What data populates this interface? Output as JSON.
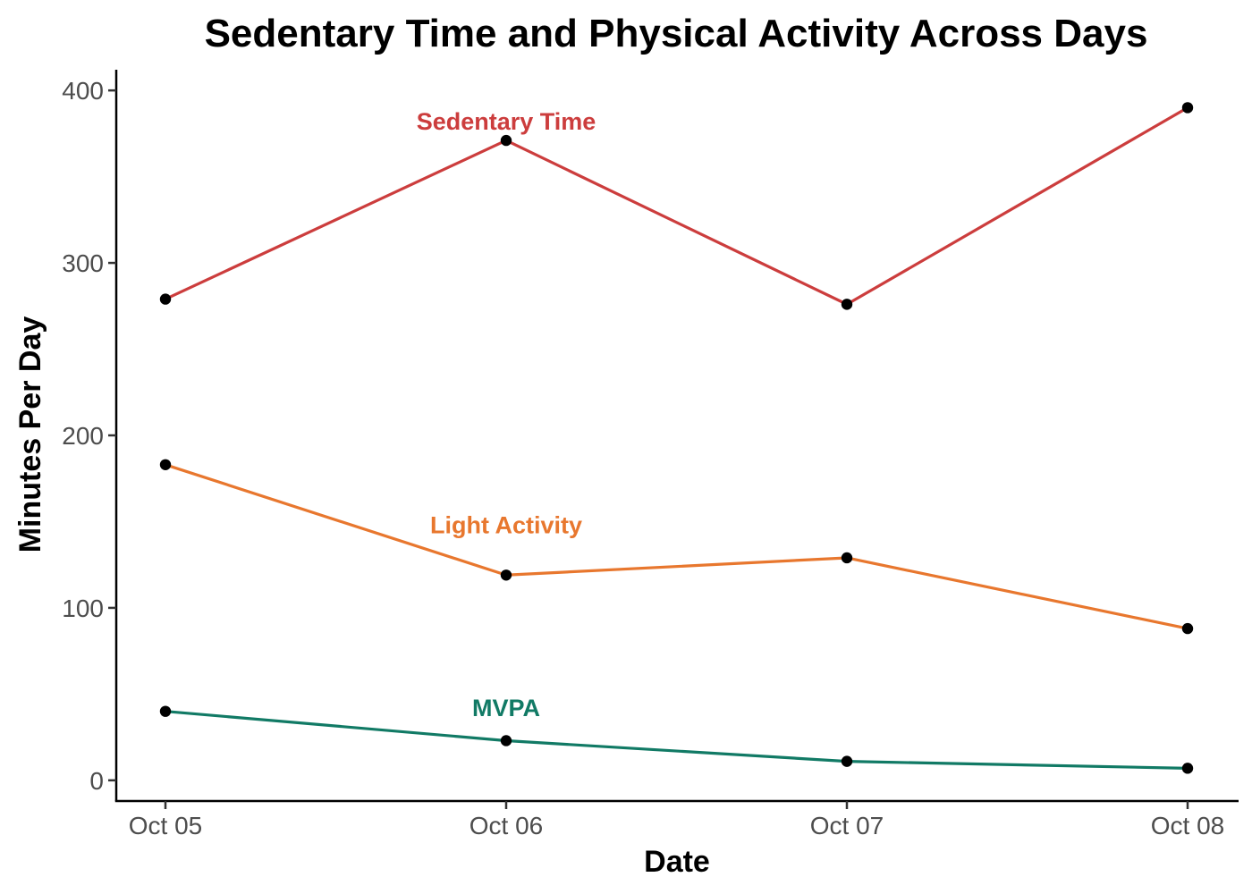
{
  "chart_data": {
    "type": "line",
    "title": "Sedentary Time and Physical Activity Across Days",
    "xlabel": "Date",
    "ylabel": "Minutes Per Day",
    "categories": [
      "Oct 05",
      "Oct 06",
      "Oct 07",
      "Oct 08"
    ],
    "ylim": [
      -12,
      412
    ],
    "yticks": [
      0,
      100,
      200,
      300,
      400
    ],
    "grid": false,
    "legend": "none (direct labels on lines)",
    "marker_color": "#000000",
    "series": [
      {
        "name": "Sedentary Time",
        "color": "#cc3d3d",
        "values": [
          279,
          371,
          276,
          390
        ],
        "label_at": "Oct 06",
        "label_value": 382
      },
      {
        "name": "Light Activity",
        "color": "#e8772e",
        "values": [
          183,
          119,
          129,
          88
        ],
        "label_at": "Oct 06",
        "label_value": 148
      },
      {
        "name": "MVPA",
        "color": "#117a65",
        "values": [
          40,
          23,
          11,
          7
        ],
        "label_at": "Oct 06",
        "label_value": 42
      }
    ]
  }
}
